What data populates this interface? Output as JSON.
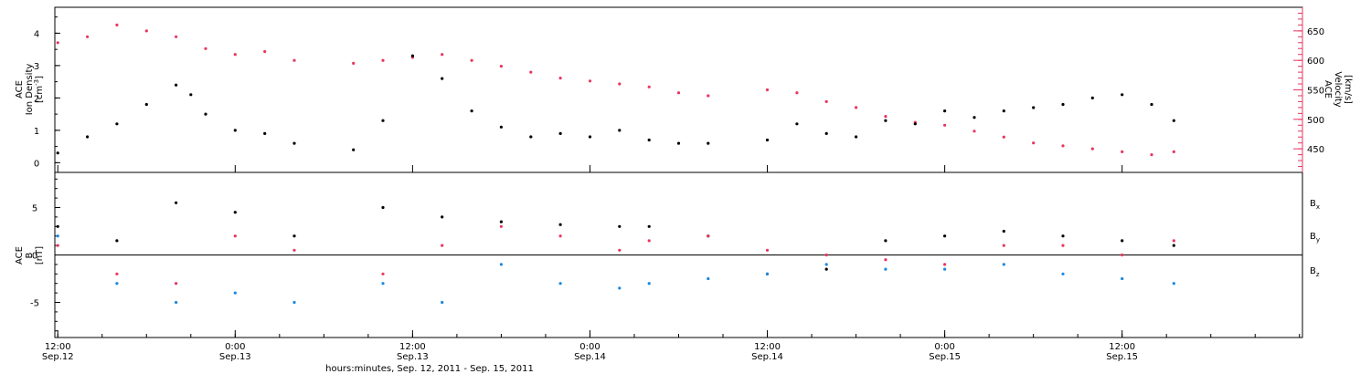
{
  "chart_data": [
    {
      "panel": "plasma",
      "type": "scatter",
      "left_axis": {
        "label_line1": "ACE",
        "label_line2": "Ion Density",
        "label_line3_prefix": "[cm",
        "label_line3_sup": "-3",
        "label_line3_suffix": "]",
        "ylim": [
          -0.3,
          4.8
        ],
        "ticks": [
          "0",
          "1",
          "2",
          "3",
          "4"
        ],
        "color": "#000000"
      },
      "right_axis": {
        "label_line1": "ACE",
        "label_line2": "Velocity",
        "label_line3": "[km/s]",
        "ylim": [
          410,
          690
        ],
        "ticks": [
          "450",
          "500",
          "550",
          "600",
          "650"
        ],
        "color": "#e8365f"
      },
      "series": [
        {
          "role": "density",
          "color": "#000000",
          "points": [
            [
              0.0,
              0.3
            ],
            [
              2.0,
              0.8
            ],
            [
              4.0,
              1.2
            ],
            [
              6.0,
              1.8
            ],
            [
              8.0,
              2.4
            ],
            [
              9.0,
              2.1
            ],
            [
              10.0,
              1.5
            ],
            [
              12.0,
              1.0
            ],
            [
              14.0,
              0.9
            ],
            [
              16.0,
              0.6
            ],
            [
              20.0,
              0.4
            ],
            [
              22.0,
              1.3
            ],
            [
              24.0,
              3.3
            ],
            [
              26.0,
              2.6
            ],
            [
              28.0,
              1.6
            ],
            [
              30.0,
              1.1
            ],
            [
              32.0,
              0.8
            ],
            [
              34.0,
              0.9
            ],
            [
              36.0,
              0.8
            ],
            [
              38.0,
              1.0
            ],
            [
              40.0,
              0.7
            ],
            [
              42.0,
              0.6
            ],
            [
              44.0,
              0.6
            ],
            [
              48.0,
              0.7
            ],
            [
              50.0,
              1.2
            ],
            [
              52.0,
              0.9
            ],
            [
              54.0,
              0.8
            ],
            [
              56.0,
              1.3
            ],
            [
              58.0,
              1.2
            ],
            [
              60.0,
              1.6
            ],
            [
              62.0,
              1.4
            ],
            [
              64.0,
              1.6
            ],
            [
              66.0,
              1.7
            ],
            [
              68.0,
              1.8
            ],
            [
              70.0,
              2.0
            ],
            [
              72.0,
              2.1
            ],
            [
              74.0,
              1.8
            ],
            [
              75.5,
              1.3
            ]
          ]
        },
        {
          "role": "velocity",
          "color": "#e8365f",
          "points": [
            [
              0.0,
              630
            ],
            [
              2.0,
              640
            ],
            [
              4.0,
              660
            ],
            [
              6.0,
              650
            ],
            [
              8.0,
              640
            ],
            [
              10.0,
              620
            ],
            [
              12.0,
              610
            ],
            [
              14.0,
              615
            ],
            [
              16.0,
              600
            ],
            [
              20.0,
              595
            ],
            [
              22.0,
              600
            ],
            [
              24.0,
              605
            ],
            [
              26.0,
              610
            ],
            [
              28.0,
              600
            ],
            [
              30.0,
              590
            ],
            [
              32.0,
              580
            ],
            [
              34.0,
              570
            ],
            [
              36.0,
              565
            ],
            [
              38.0,
              560
            ],
            [
              40.0,
              555
            ],
            [
              42.0,
              545
            ],
            [
              44.0,
              540
            ],
            [
              48.0,
              550
            ],
            [
              50.0,
              545
            ],
            [
              52.0,
              530
            ],
            [
              54.0,
              520
            ],
            [
              56.0,
              505
            ],
            [
              58.0,
              495
            ],
            [
              60.0,
              490
            ],
            [
              62.0,
              480
            ],
            [
              64.0,
              470
            ],
            [
              66.0,
              460
            ],
            [
              68.0,
              455
            ],
            [
              70.0,
              450
            ],
            [
              72.0,
              445
            ],
            [
              74.0,
              440
            ],
            [
              75.5,
              445
            ]
          ]
        }
      ]
    },
    {
      "panel": "field",
      "type": "scatter",
      "axis": {
        "label_line1": "ACE",
        "label_line2": "B",
        "label_line3": "[nT]",
        "ylim": [
          -8.7,
          8.7
        ],
        "ticks": [
          "-5",
          "0",
          "5"
        ]
      },
      "zero_line": true,
      "series": [
        {
          "label": "B",
          "sub": "x",
          "color": "#000000",
          "points": [
            [
              0.0,
              3.0
            ],
            [
              4.0,
              1.5
            ],
            [
              8.0,
              5.5
            ],
            [
              12.0,
              4.5
            ],
            [
              16.0,
              2.0
            ],
            [
              22.0,
              5.0
            ],
            [
              26.0,
              4.0
            ],
            [
              30.0,
              3.5
            ],
            [
              34.0,
              3.2
            ],
            [
              38.0,
              3.0
            ],
            [
              40.0,
              3.0
            ],
            [
              44.0,
              2.0
            ],
            [
              48.0,
              -2.0
            ],
            [
              52.0,
              -1.5
            ],
            [
              56.0,
              1.5
            ],
            [
              60.0,
              2.0
            ],
            [
              64.0,
              2.5
            ],
            [
              68.0,
              2.0
            ],
            [
              72.0,
              1.5
            ],
            [
              75.5,
              1.0
            ]
          ]
        },
        {
          "label": "B",
          "sub": "y",
          "color": "#1a88e0",
          "points": [
            [
              0.0,
              2.0
            ],
            [
              4.0,
              -3.0
            ],
            [
              8.0,
              -5.0
            ],
            [
              12.0,
              -4.0
            ],
            [
              16.0,
              -5.0
            ],
            [
              22.0,
              -3.0
            ],
            [
              26.0,
              -5.0
            ],
            [
              30.0,
              -1.0
            ],
            [
              34.0,
              -3.0
            ],
            [
              38.0,
              -3.5
            ],
            [
              40.0,
              -3.0
            ],
            [
              44.0,
              -2.5
            ],
            [
              48.0,
              -2.0
            ],
            [
              52.0,
              -1.0
            ],
            [
              56.0,
              -1.5
            ],
            [
              60.0,
              -1.5
            ],
            [
              64.0,
              -1.0
            ],
            [
              68.0,
              -2.0
            ],
            [
              72.0,
              -2.5
            ],
            [
              75.5,
              -3.0
            ]
          ]
        },
        {
          "label": "B",
          "sub": "z",
          "color": "#e8365f",
          "points": [
            [
              0.0,
              1.0
            ],
            [
              4.0,
              -2.0
            ],
            [
              8.0,
              -3.0
            ],
            [
              12.0,
              2.0
            ],
            [
              16.0,
              0.5
            ],
            [
              22.0,
              -2.0
            ],
            [
              26.0,
              1.0
            ],
            [
              30.0,
              3.0
            ],
            [
              34.0,
              2.0
            ],
            [
              38.0,
              0.5
            ],
            [
              40.0,
              1.5
            ],
            [
              44.0,
              2.0
            ],
            [
              48.0,
              0.5
            ],
            [
              52.0,
              0.0
            ],
            [
              56.0,
              -0.5
            ],
            [
              60.0,
              -1.0
            ],
            [
              64.0,
              1.0
            ],
            [
              68.0,
              1.0
            ],
            [
              72.0,
              0.0
            ],
            [
              75.5,
              1.5
            ]
          ]
        }
      ]
    }
  ],
  "x_axis": {
    "title": "hours:minutes, Sep. 12, 2011 - Sep. 15, 2011",
    "range_hours": [
      -0.2,
      84.2
    ],
    "tick_labels": [
      {
        "hour": 0,
        "time": "12:00",
        "date": "Sep.12"
      },
      {
        "hour": 12,
        "time": "0:00",
        "date": "Sep.13"
      },
      {
        "hour": 24,
        "time": "12:00",
        "date": "Sep.13"
      },
      {
        "hour": 36,
        "time": "0:00",
        "date": "Sep.14"
      },
      {
        "hour": 48,
        "time": "12:00",
        "date": "Sep.14"
      },
      {
        "hour": 60,
        "time": "0:00",
        "date": "Sep.15"
      },
      {
        "hour": 72,
        "time": "12:00",
        "date": "Sep.15"
      }
    ]
  }
}
